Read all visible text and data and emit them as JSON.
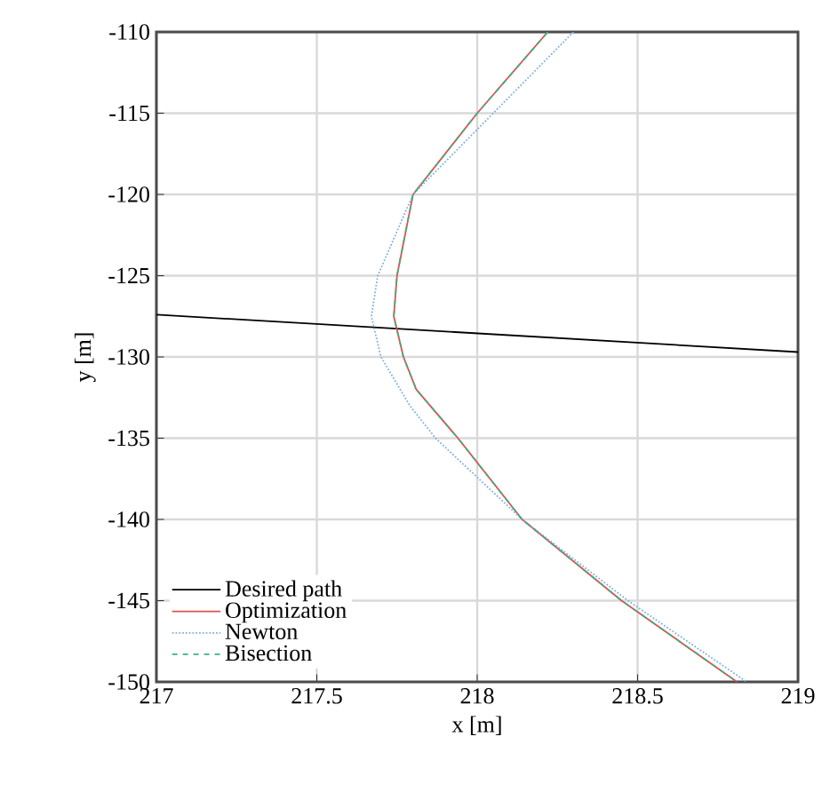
{
  "chart_data": {
    "type": "line",
    "xlabel": "x [m]",
    "ylabel": "y [m]",
    "xlim": [
      217,
      219
    ],
    "ylim": [
      -150,
      -110
    ],
    "xticks": [
      217,
      217.5,
      218,
      218.5,
      219
    ],
    "yticks": [
      -150,
      -145,
      -140,
      -135,
      -130,
      -125,
      -120,
      -115,
      -110
    ],
    "grid": true,
    "legend": "bottom left",
    "marker": "none",
    "series": [
      {
        "name": "Desired path",
        "color": "#000000",
        "line_style": "solid",
        "x": [
          217,
          219
        ],
        "values": [
          -127.4,
          -129.7
        ]
      },
      {
        "name": "Optimization",
        "color": "#e05050",
        "line_style": "solid",
        "x": [
          218.22,
          218.0,
          217.8,
          217.75,
          217.74,
          217.77,
          217.81,
          217.94,
          218.14,
          218.45,
          218.81
        ],
        "values": [
          -110,
          -115,
          -120,
          -125,
          -127.5,
          -130,
          -132,
          -135,
          -140,
          -145,
          -150
        ]
      },
      {
        "name": "Newton",
        "color": "#7fb0e0",
        "line_style": "dotted",
        "x": [
          218.3,
          218.05,
          217.8,
          217.69,
          217.67,
          217.7,
          217.79,
          217.87,
          218.14,
          218.47,
          218.84
        ],
        "values": [
          -110,
          -115,
          -120,
          -125,
          -127.5,
          -130,
          -133,
          -135,
          -140,
          -145,
          -150
        ]
      },
      {
        "name": "Bisection",
        "color": "#40b080",
        "line_style": "dashed",
        "x": [
          218.22,
          218.0,
          217.8,
          217.75,
          217.74,
          217.77,
          217.81,
          217.94,
          218.14,
          218.45,
          218.81
        ],
        "values": [
          -110,
          -115,
          -120,
          -125,
          -127.5,
          -130,
          -132,
          -135,
          -140,
          -145,
          -150
        ]
      }
    ]
  }
}
